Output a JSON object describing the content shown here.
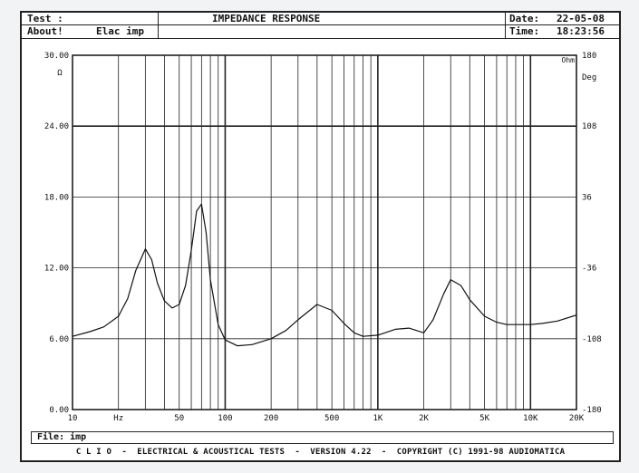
{
  "header": {
    "test_label": "Test :",
    "title": "IMPEDANCE RESPONSE",
    "date_label": "Date:",
    "date_value": "22-05-08",
    "about_label": "About!",
    "about_value": "Elac imp",
    "time_label": "Time:",
    "time_value": "18:23:56"
  },
  "file": {
    "label": "File:",
    "value": "imp"
  },
  "footer": "C L I O  -  ELECTRICAL & ACOUSTICAL TESTS  -  VERSION 4.22  -  COPYRIGHT (C) 1991-98 AUDIOMATICA",
  "chart_data": {
    "type": "line",
    "title": "IMPEDANCE RESPONSE",
    "x_scale": "log",
    "xlim": [
      10,
      20000
    ],
    "ylim": [
      0,
      30
    ],
    "y2lim": [
      -180,
      180
    ],
    "ylabel": "Ω",
    "ylabel_right": "Deg",
    "right_marker": "Ohm",
    "x_ticks": [
      {
        "value": 10,
        "label": "10"
      },
      {
        "value": 20,
        "label": "Hz"
      },
      {
        "value": 50,
        "label": "50"
      },
      {
        "value": 100,
        "label": "100"
      },
      {
        "value": 200,
        "label": "200"
      },
      {
        "value": 500,
        "label": "500"
      },
      {
        "value": 1000,
        "label": "1K"
      },
      {
        "value": 2000,
        "label": "2K"
      },
      {
        "value": 5000,
        "label": "5K"
      },
      {
        "value": 10000,
        "label": "10K"
      },
      {
        "value": 20000,
        "label": "20K"
      }
    ],
    "y_ticks_left": [
      "0.00",
      "6.00",
      "12.00",
      "18.00",
      "24.00",
      "30.00"
    ],
    "y_ticks_right": [
      "-180",
      "-108",
      "-36",
      "36",
      "108",
      "180"
    ],
    "grid": true,
    "series": [
      {
        "x": [
          10,
          13,
          16,
          20,
          23,
          26,
          30,
          33,
          36,
          40,
          45,
          50,
          55,
          60,
          65,
          70,
          75,
          80,
          90,
          100,
          120,
          150,
          200,
          250,
          300,
          400,
          500,
          600,
          700,
          800,
          1000,
          1300,
          1600,
          2000,
          2300,
          2700,
          3000,
          3500,
          4000,
          5000,
          6000,
          7000,
          8000,
          10000,
          12000,
          15000,
          20000
        ],
        "y": [
          6.2,
          6.6,
          7.0,
          7.9,
          9.4,
          11.8,
          13.6,
          12.7,
          10.7,
          9.2,
          8.6,
          8.9,
          10.5,
          13.5,
          16.8,
          17.4,
          15.0,
          11.0,
          7.2,
          5.9,
          5.4,
          5.5,
          6.0,
          6.7,
          7.6,
          8.9,
          8.4,
          7.3,
          6.5,
          6.2,
          6.3,
          6.8,
          6.9,
          6.5,
          7.6,
          9.8,
          11.0,
          10.5,
          9.3,
          7.9,
          7.4,
          7.2,
          7.2,
          7.2,
          7.3,
          7.5,
          8.0
        ],
        "color": "#111111"
      }
    ]
  }
}
